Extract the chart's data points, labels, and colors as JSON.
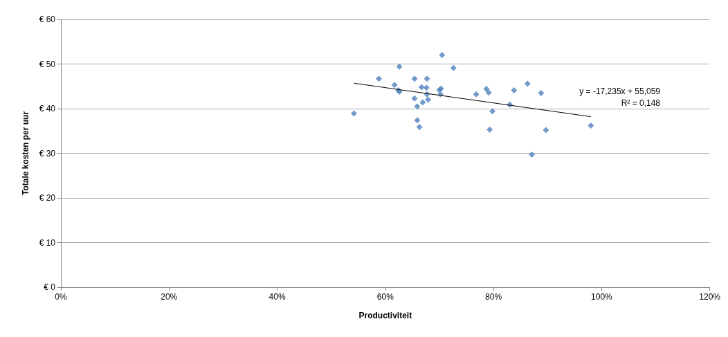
{
  "chart_data": {
    "type": "scatter",
    "xlabel": "Productiviteit",
    "ylabel": "Totale kosten per uur",
    "xlim": [
      0,
      120
    ],
    "xticks": [
      {
        "value": 0,
        "label": "0%"
      },
      {
        "value": 20,
        "label": "20%"
      },
      {
        "value": 40,
        "label": "40%"
      },
      {
        "value": 60,
        "label": "60%"
      },
      {
        "value": 80,
        "label": "80%"
      },
      {
        "value": 100,
        "label": "100%"
      },
      {
        "value": 120,
        "label": "120%"
      }
    ],
    "ylim": [
      0,
      60
    ],
    "yticks": [
      {
        "value": 0,
        "label": "€ 0"
      },
      {
        "value": 10,
        "label": "€ 10"
      },
      {
        "value": 20,
        "label": "€ 20"
      },
      {
        "value": 30,
        "label": "€ 30"
      },
      {
        "value": 40,
        "label": "€ 40"
      },
      {
        "value": 50,
        "label": "€ 50"
      },
      {
        "value": 60,
        "label": "€ 60"
      }
    ],
    "grid": "y",
    "marker": "diamond",
    "series": [
      {
        "color": "#4f81bd",
        "x": [
          54.2,
          58.8,
          62.6,
          61.7,
          62.6,
          62.4,
          65.4,
          67.7,
          66.7,
          67.6,
          65.4,
          67.7,
          67.9,
          66.9,
          65.9,
          65.9,
          66.3,
          72.6,
          70.3,
          70.0,
          70.2,
          76.8,
          78.7,
          79.1,
          79.8,
          79.3,
          83.0,
          83.8,
          86.3,
          88.8,
          87.1,
          89.7,
          98.0,
          70.5
        ],
        "values": [
          38.9,
          46.7,
          49.4,
          45.3,
          43.8,
          44.1,
          46.7,
          46.7,
          44.8,
          44.7,
          42.3,
          43.2,
          42.0,
          41.4,
          40.5,
          37.4,
          35.9,
          49.1,
          44.5,
          44.2,
          43.2,
          43.2,
          44.4,
          43.6,
          39.4,
          35.3,
          40.9,
          44.1,
          45.6,
          43.5,
          29.7,
          35.2,
          36.2,
          52.0
        ]
      },
      {
        "type": "line",
        "color": "#000000",
        "marker": "none",
        "x": [
          54.2,
          98.0
        ],
        "values": [
          45.7,
          38.2
        ]
      }
    ],
    "annotations": [
      "y = -17,235x + 55,059",
      "R² = 0,148"
    ]
  }
}
